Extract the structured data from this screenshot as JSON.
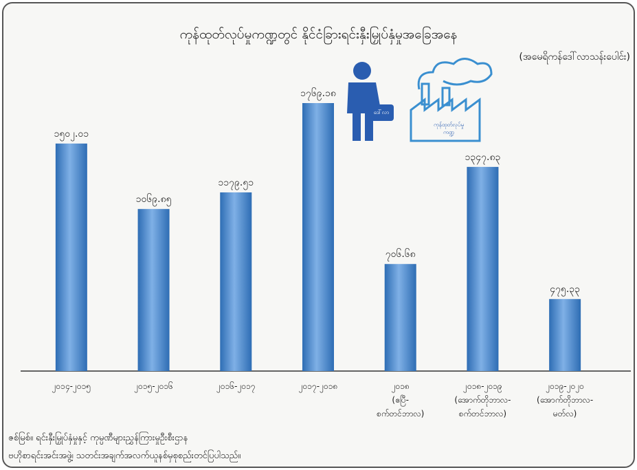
{
  "chart_data": {
    "type": "bar",
    "title": "ကုန်ထုတ်လုပ်မှုကဏ္ဍတွင် နိုင်ငံခြားရင်းနှီးမြှုပ်နှံမှုအခြေအနေ",
    "subtitle": "(အမေရိကန်ဒေါ်လာသန်းပေါင်း)",
    "categories": [
      "၂၀၁၄-၂၀၁၅",
      "၂၀၁၅-၂၀၁၆",
      "၂၀၁၆-၂၀၁၇",
      "၂၀၁၇-၂၀၁၈",
      "၂၀၁၈\n(ဧပြီ-\nစက်တင်ဘာလ)",
      "၂၀၁၈-၂၀၁၉\n(အောက်တိုဘာလ-\nစက်တင်ဘာလ)",
      "၂၀၁၉-၂၀၂၀\n(အောက်တိုဘာလ-\nမတ်လ)"
    ],
    "values": [
      1502.01,
      1069.85,
      1179.51,
      1769.18,
      706.68,
      1347.83,
      475.33
    ],
    "value_labels": [
      "၁၅၀၂.၀၁",
      "၁၀၆၉.၈၅",
      "၁၁၇၉.၅၁",
      "၁၇၆၉.၁၈",
      "၇၀၆.၆၈",
      "၁၃၄၇.၈၃",
      "၄၇၅.၃၃"
    ],
    "color": "#2e6db4",
    "annotations": [
      "ဒေါ်လာ",
      "ကုန်ထုတ်လုပ်မှု\nကဏ္ဍ"
    ],
    "source": "ဇစ်မြစ်။  ရင်းနှီးမြှုပ်နှံမှုနှင့် ကုမ္ပဏီများညွှန်ကြားမှုဦးစီးဌာန\nဗဟိုစာရင်းအင်းအဖွဲ့၊ သတင်းအချက်အလက်ယူနစ်မှစုစည်းတင်ပြပါသည်။"
  }
}
